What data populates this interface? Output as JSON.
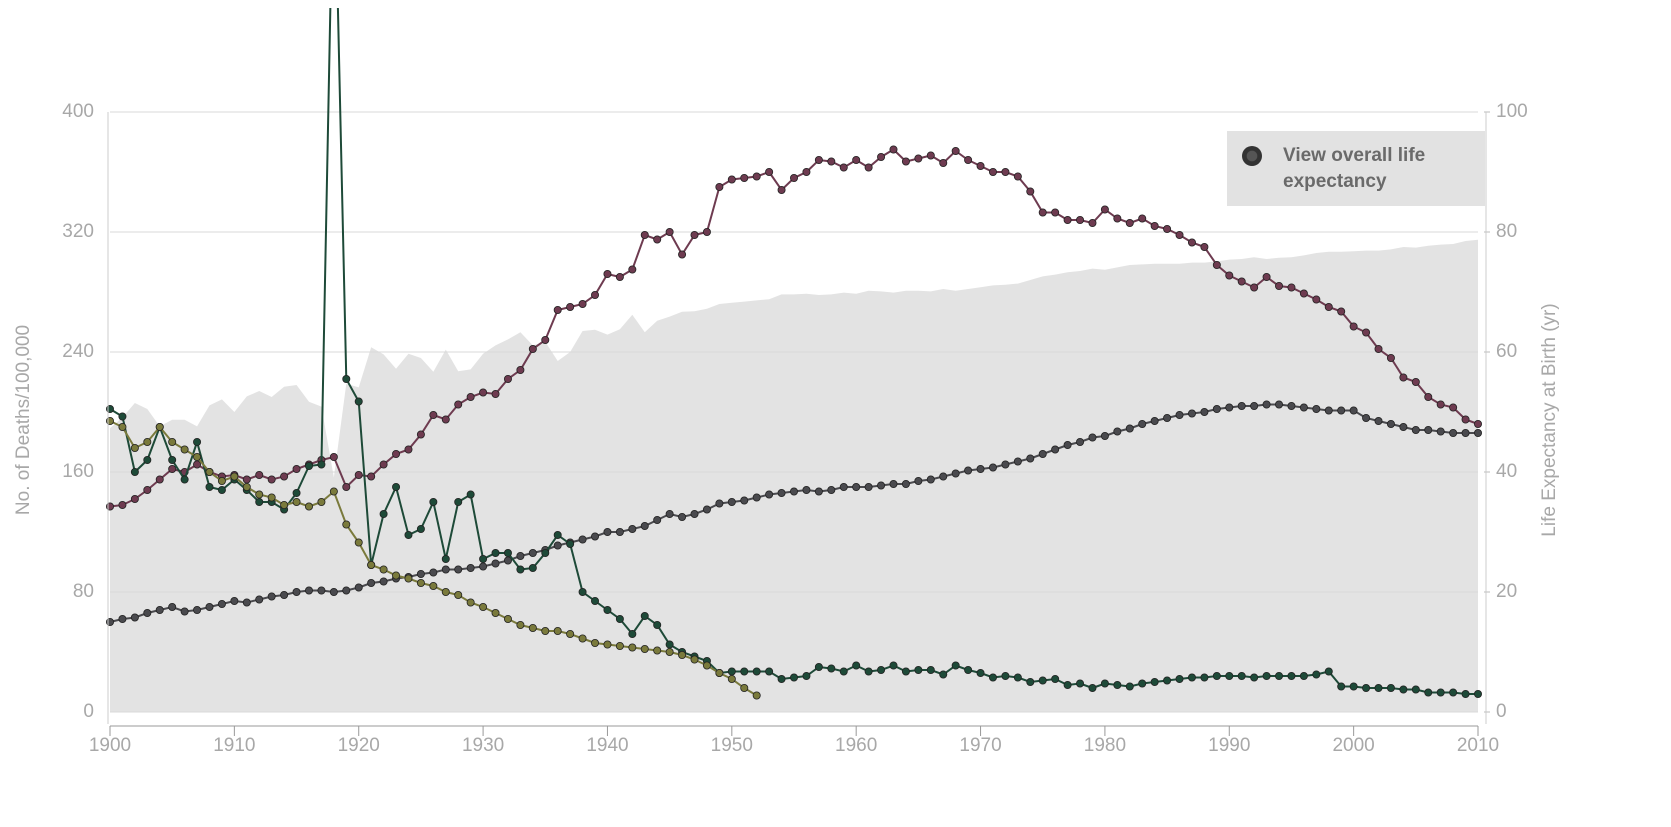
{
  "chart_data": {
    "type": "line",
    "x": [
      1900,
      1901,
      1902,
      1903,
      1904,
      1905,
      1906,
      1907,
      1908,
      1909,
      1910,
      1911,
      1912,
      1913,
      1914,
      1915,
      1916,
      1917,
      1918,
      1919,
      1920,
      1921,
      1922,
      1923,
      1924,
      1925,
      1926,
      1927,
      1928,
      1929,
      1930,
      1931,
      1932,
      1933,
      1934,
      1935,
      1936,
      1937,
      1938,
      1939,
      1940,
      1941,
      1942,
      1943,
      1944,
      1945,
      1946,
      1947,
      1948,
      1949,
      1950,
      1951,
      1952,
      1953,
      1954,
      1955,
      1956,
      1957,
      1958,
      1959,
      1960,
      1961,
      1962,
      1963,
      1964,
      1965,
      1966,
      1967,
      1968,
      1969,
      1970,
      1971,
      1972,
      1973,
      1974,
      1975,
      1976,
      1977,
      1978,
      1979,
      1980,
      1981,
      1982,
      1983,
      1984,
      1985,
      1986,
      1987,
      1988,
      1989,
      1990,
      1991,
      1992,
      1993,
      1994,
      1995,
      1996,
      1997,
      1998,
      1999,
      2000,
      2001,
      2002,
      2003,
      2004,
      2005,
      2006,
      2007,
      2008,
      2009,
      2010
    ],
    "xlim": [
      1900,
      2010
    ],
    "xticks": [
      1900,
      1910,
      1920,
      1930,
      1940,
      1950,
      1960,
      1970,
      1980,
      1990,
      2000,
      2010
    ],
    "ylabel": "No. of Deaths/100,000",
    "ylim": [
      0,
      400
    ],
    "yticks": [
      0,
      80,
      160,
      240,
      320,
      400
    ],
    "y2label": "Life Expectancy at Birth (yr)",
    "y2lim": [
      0,
      100
    ],
    "y2ticks": [
      0,
      20,
      40,
      60,
      80,
      100
    ],
    "grid": true,
    "button": "View overall life expectancy",
    "area": {
      "axis": "y2",
      "color": "#e3e3e3",
      "values": [
        47.3,
        49.1,
        51.5,
        50.5,
        47.6,
        48.7,
        48.7,
        47.6,
        51.1,
        52.1,
        50.0,
        52.6,
        53.5,
        52.5,
        54.2,
        54.5,
        51.7,
        50.9,
        39.1,
        54.7,
        54.1,
        60.8,
        59.6,
        57.2,
        59.7,
        59.0,
        56.7,
        60.4,
        56.8,
        57.1,
        59.7,
        61.1,
        62.1,
        63.3,
        61.1,
        61.7,
        58.5,
        60.0,
        63.5,
        63.7,
        62.9,
        63.8,
        66.2,
        63.3,
        65.2,
        65.9,
        66.7,
        66.8,
        67.2,
        68.0,
        68.2,
        68.4,
        68.6,
        68.8,
        69.6,
        69.6,
        69.7,
        69.5,
        69.6,
        69.9,
        69.7,
        70.2,
        70.1,
        69.9,
        70.2,
        70.2,
        70.1,
        70.5,
        70.2,
        70.5,
        70.8,
        71.1,
        71.2,
        71.4,
        72.0,
        72.6,
        72.9,
        73.3,
        73.5,
        73.9,
        73.7,
        74.1,
        74.5,
        74.6,
        74.7,
        74.7,
        74.7,
        74.9,
        74.9,
        75.1,
        75.4,
        75.5,
        75.8,
        75.5,
        75.7,
        75.8,
        76.1,
        76.5,
        76.7,
        76.7,
        76.8,
        76.9,
        76.9,
        77.1,
        77.5,
        77.4,
        77.7,
        77.9,
        78.0,
        78.5,
        78.7
      ]
    },
    "series": [
      {
        "color": "#6e3b50",
        "values": [
          137,
          138,
          142,
          148,
          155,
          162,
          160,
          165,
          160,
          157,
          158,
          155,
          158,
          155,
          157,
          162,
          165,
          168,
          170,
          150,
          158,
          157,
          165,
          172,
          175,
          185,
          198,
          195,
          205,
          210,
          213,
          212,
          222,
          228,
          242,
          248,
          268,
          270,
          272,
          278,
          292,
          290,
          295,
          318,
          315,
          320,
          305,
          318,
          320,
          350,
          355,
          356,
          357,
          360,
          348,
          356,
          360,
          368,
          367,
          363,
          368,
          363,
          370,
          375,
          367,
          369,
          371,
          366,
          374,
          368,
          364,
          360,
          360,
          357,
          347,
          333,
          333,
          328,
          328,
          326,
          335,
          329,
          326,
          329,
          324,
          322,
          318,
          313,
          310,
          298,
          291,
          287,
          283,
          290,
          284,
          283,
          279,
          275,
          270,
          267,
          257,
          253,
          242,
          236,
          223,
          220,
          210,
          205,
          203,
          195,
          192
        ]
      },
      {
        "color": "#4a4a4e",
        "values": [
          60,
          62,
          63,
          66,
          68,
          70,
          67,
          68,
          70,
          72,
          74,
          73,
          75,
          77,
          78,
          80,
          81,
          81,
          80,
          81,
          83,
          86,
          87,
          89,
          90,
          92,
          93,
          95,
          95,
          96,
          97,
          99,
          101,
          104,
          106,
          108,
          111,
          113,
          115,
          117,
          120,
          120,
          122,
          124,
          128,
          132,
          130,
          132,
          135,
          139,
          140,
          141,
          143,
          145,
          146,
          147,
          148,
          147,
          148,
          150,
          150,
          150,
          151,
          152,
          152,
          154,
          155,
          157,
          159,
          161,
          162,
          163,
          165,
          167,
          169,
          172,
          175,
          178,
          180,
          183,
          184,
          187,
          189,
          192,
          194,
          196,
          198,
          199,
          200,
          202,
          203,
          204,
          204,
          205,
          205,
          204,
          203,
          202,
          201,
          201,
          201,
          196,
          194,
          192,
          190,
          188,
          188,
          187,
          186,
          186,
          186
        ]
      },
      {
        "color": "#1e4a38",
        "values": [
          202,
          197,
          160,
          168,
          190,
          168,
          155,
          180,
          150,
          148,
          155,
          148,
          140,
          140,
          135,
          146,
          164,
          165,
          589,
          222,
          207,
          98,
          132,
          150,
          118,
          122,
          140,
          102,
          140,
          145,
          102,
          106,
          106,
          95,
          96,
          106,
          118,
          112,
          80,
          74,
          68,
          62,
          52,
          64,
          58,
          45,
          40,
          37,
          34,
          26,
          27,
          27,
          27,
          27,
          22,
          23,
          24,
          30,
          29,
          27,
          31,
          27,
          28,
          31,
          27,
          28,
          28,
          25,
          31,
          28,
          26,
          23,
          24,
          23,
          20,
          21,
          22,
          18,
          19,
          16,
          19,
          18,
          17,
          19,
          20,
          21,
          22,
          23,
          23,
          24,
          24,
          24,
          23,
          24,
          24,
          24,
          24,
          25,
          27,
          17,
          17,
          16,
          16,
          16,
          15,
          15,
          13,
          13,
          13,
          12,
          12
        ]
      },
      {
        "color": "#7a7a3c",
        "values": [
          194,
          190,
          176,
          180,
          190,
          180,
          175,
          170,
          160,
          154,
          157,
          150,
          145,
          143,
          138,
          140,
          137,
          140,
          147,
          125,
          113,
          98,
          95,
          91,
          89,
          86,
          84,
          80,
          78,
          73,
          70,
          66,
          62,
          58,
          56,
          54,
          54,
          52,
          49,
          46,
          45,
          44,
          43,
          42,
          41,
          40,
          38,
          35,
          31,
          26,
          22,
          16,
          11,
          null,
          null,
          null,
          null,
          null,
          null,
          null,
          null,
          null,
          null,
          null,
          null,
          null,
          null,
          null,
          null,
          null,
          null,
          null,
          null,
          null,
          null,
          null,
          null,
          null,
          null,
          null,
          null,
          null,
          null,
          null,
          null,
          null,
          null,
          null,
          null,
          null,
          null,
          null,
          null,
          null,
          null,
          null,
          null,
          null,
          null,
          null,
          null,
          null,
          null,
          null,
          null,
          null,
          null,
          null,
          null,
          null,
          null
        ]
      }
    ]
  }
}
